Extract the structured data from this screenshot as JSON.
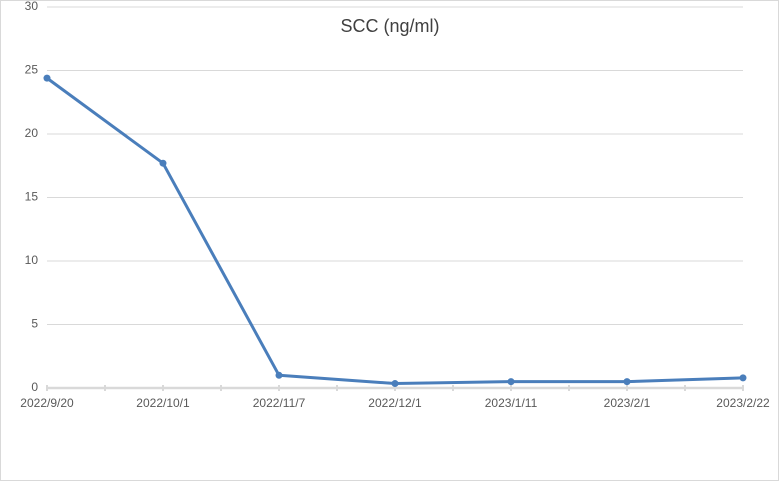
{
  "chart_data": {
    "type": "line",
    "title": "SCC  (ng/ml)",
    "categories": [
      "2022/9/20",
      "2022/10/1",
      "2022/11/7",
      "2022/12/1",
      "2023/1/11",
      "2023/2/1",
      "2023/2/22"
    ],
    "values": [
      24.4,
      17.7,
      1.0,
      0.35,
      0.5,
      0.5,
      0.8
    ],
    "color": "#4a7ebb",
    "ylim": [
      0,
      30
    ],
    "yticks": [
      0,
      5,
      10,
      15,
      20,
      25,
      30
    ],
    "grid": true
  }
}
